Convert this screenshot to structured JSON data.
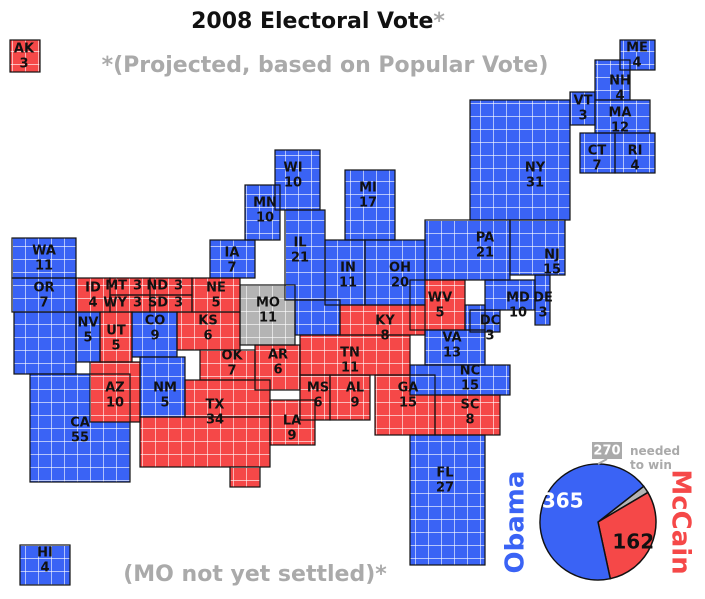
{
  "title": "2008 Electoral Vote",
  "title_mark": "*",
  "subtitle": "*(Projected, based on Popular Vote)",
  "footnote": "(MO not yet settled)*",
  "states": [
    {
      "abbr": "WA",
      "votes": 11,
      "color": "#3a63f5"
    },
    {
      "abbr": "OR",
      "votes": 7,
      "color": "#3a63f5"
    },
    {
      "abbr": "CA",
      "votes": 55,
      "color": "#3a63f5"
    },
    {
      "abbr": "NV",
      "votes": 5,
      "color": "#3a63f5"
    },
    {
      "abbr": "ID",
      "votes": 4,
      "color": "#f54848"
    },
    {
      "abbr": "MT",
      "votes": 3,
      "color": "#f54848"
    },
    {
      "abbr": "WY",
      "votes": 3,
      "color": "#f54848"
    },
    {
      "abbr": "ND",
      "votes": 3,
      "color": "#f54848"
    },
    {
      "abbr": "SD",
      "votes": 3,
      "color": "#f54848"
    },
    {
      "abbr": "NE",
      "votes": 5,
      "color": "#f54848"
    },
    {
      "abbr": "UT",
      "votes": 5,
      "color": "#f54848"
    },
    {
      "abbr": "CO",
      "votes": 9,
      "color": "#3a63f5"
    },
    {
      "abbr": "AZ",
      "votes": 10,
      "color": "#f54848"
    },
    {
      "abbr": "NM",
      "votes": 5,
      "color": "#3a63f5"
    },
    {
      "abbr": "KS",
      "votes": 6,
      "color": "#f54848"
    },
    {
      "abbr": "TX",
      "votes": 34,
      "color": "#f54848"
    },
    {
      "abbr": "OK",
      "votes": 7,
      "color": "#f54848"
    },
    {
      "abbr": "AR",
      "votes": 6,
      "color": "#f54848"
    },
    {
      "abbr": "LA",
      "votes": 9,
      "color": "#f54848"
    },
    {
      "abbr": "MS",
      "votes": 6,
      "color": "#f54848"
    },
    {
      "abbr": "AL",
      "votes": 9,
      "color": "#f54848"
    },
    {
      "abbr": "TN",
      "votes": 11,
      "color": "#f54848"
    },
    {
      "abbr": "KY",
      "votes": 8,
      "color": "#f54848"
    },
    {
      "abbr": "WV",
      "votes": 5,
      "color": "#f54848"
    },
    {
      "abbr": "GA",
      "votes": 15,
      "color": "#f54848"
    },
    {
      "abbr": "SC",
      "votes": 8,
      "color": "#f54848"
    },
    {
      "abbr": "MO",
      "votes": 11,
      "color": "#b4b4b4"
    },
    {
      "abbr": "IA",
      "votes": 7,
      "color": "#3a63f5"
    },
    {
      "abbr": "MN",
      "votes": 10,
      "color": "#3a63f5"
    },
    {
      "abbr": "WI",
      "votes": 10,
      "color": "#3a63f5"
    },
    {
      "abbr": "IL",
      "votes": 21,
      "color": "#3a63f5"
    },
    {
      "abbr": "MI",
      "votes": 17,
      "color": "#3a63f5"
    },
    {
      "abbr": "IN",
      "votes": 11,
      "color": "#3a63f5"
    },
    {
      "abbr": "OH",
      "votes": 20,
      "color": "#3a63f5"
    },
    {
      "abbr": "VA",
      "votes": 13,
      "color": "#3a63f5"
    },
    {
      "abbr": "NC",
      "votes": 15,
      "color": "#3a63f5"
    },
    {
      "abbr": "FL",
      "votes": 27,
      "color": "#3a63f5"
    },
    {
      "abbr": "PA",
      "votes": 21,
      "color": "#3a63f5"
    },
    {
      "abbr": "NY",
      "votes": 31,
      "color": "#3a63f5"
    },
    {
      "abbr": "NJ",
      "votes": 15,
      "color": "#3a63f5"
    },
    {
      "abbr": "DE",
      "votes": 3,
      "color": "#3a63f5"
    },
    {
      "abbr": "MD",
      "votes": 10,
      "color": "#3a63f5"
    },
    {
      "abbr": "DC",
      "votes": 3,
      "color": "#3a63f5"
    },
    {
      "abbr": "VT",
      "votes": 3,
      "color": "#3a63f5"
    },
    {
      "abbr": "NH",
      "votes": 4,
      "color": "#3a63f5"
    },
    {
      "abbr": "ME",
      "votes": 4,
      "color": "#3a63f5"
    },
    {
      "abbr": "MA",
      "votes": 12,
      "color": "#3a63f5"
    },
    {
      "abbr": "CT",
      "votes": 7,
      "color": "#3a63f5"
    },
    {
      "abbr": "RI",
      "votes": 4,
      "color": "#3a63f5"
    },
    {
      "abbr": "AK",
      "votes": 3,
      "color": "#f54848"
    },
    {
      "abbr": "HI",
      "votes": 4,
      "color": "#3a63f5"
    }
  ],
  "pie": {
    "threshold": 270,
    "threshold_label": "needed to win",
    "slices": [
      {
        "name": "Obama",
        "value": 365,
        "color": "#3a63f5"
      },
      {
        "name": "McCain",
        "value": 162,
        "color": "#f54848"
      },
      {
        "value": 11,
        "color": "#b4b4b4"
      }
    ]
  }
}
